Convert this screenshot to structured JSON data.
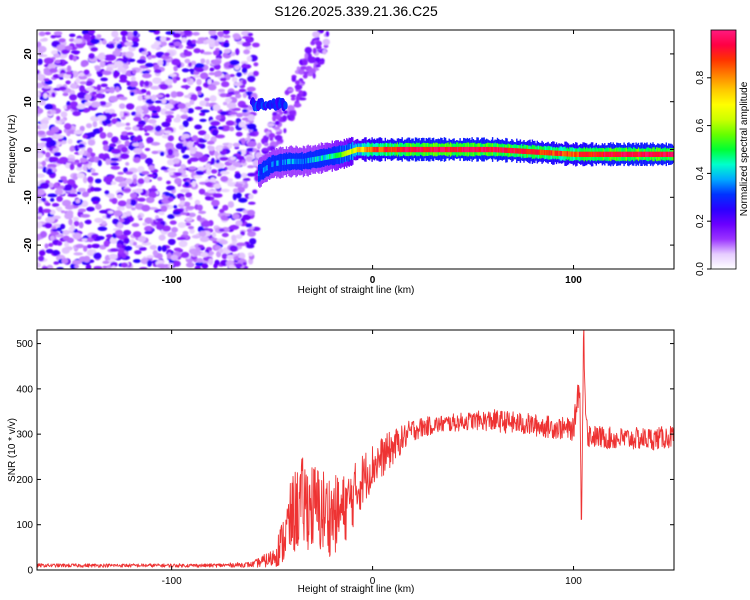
{
  "title": "S126.2025.339.21.36.C25",
  "chart_data": [
    {
      "type": "heatmap",
      "name": "spectrogram",
      "xlabel": "Height of straight line (km)",
      "ylabel": "Frequency (Hz)",
      "xlim": [
        -167,
        150
      ],
      "ylim": [
        -25,
        25
      ],
      "xticks": [
        -100,
        0,
        100
      ],
      "yticks": [
        -20,
        -10,
        0,
        10,
        20
      ],
      "colorbar": {
        "label": "Normalized spectral amplitude",
        "range": [
          0,
          1
        ],
        "ticks": [
          0.0,
          0.2,
          0.4,
          0.6,
          0.8
        ],
        "colors": [
          "#ffffff",
          "#e6ccff",
          "#9a33ff",
          "#6a00ff",
          "#2a00ff",
          "#0033ff",
          "#00aaff",
          "#00ffcc",
          "#00ff33",
          "#66ff00",
          "#ccff00",
          "#ffff00",
          "#ffc800",
          "#ff8000",
          "#ff3300",
          "#ff0044",
          "#ff1a80"
        ]
      },
      "features": [
        {
          "label": "noise",
          "x_range": [
            -167,
            -58
          ],
          "y_range": [
            -25,
            25
          ],
          "amplitude": 0.1
        },
        {
          "label": "tone_10Hz",
          "x_range": [
            -60,
            -43
          ],
          "y_center": 9.5,
          "amplitude": 0.3
        },
        {
          "label": "ridge",
          "x": [
            -57,
            -50,
            -42,
            -35,
            -28,
            -22,
            -15,
            -8,
            0,
            20,
            40,
            60,
            80,
            100,
            120,
            150
          ],
          "y": [
            -5,
            -3,
            -2.5,
            -2.5,
            -2,
            -1.5,
            -1,
            0,
            0,
            0,
            0,
            0,
            -0.5,
            -1,
            -1,
            -1
          ],
          "amplitude": [
            0.3,
            0.35,
            0.35,
            0.35,
            0.4,
            0.45,
            0.55,
            0.7,
            0.85,
            0.95,
            0.95,
            0.95,
            0.9,
            0.85,
            0.95,
            0.95
          ]
        }
      ]
    },
    {
      "type": "line",
      "name": "snr",
      "color": "#ee3333",
      "xlabel": "Height of straight line (km)",
      "ylabel": "SNR (10 * v/v)",
      "xlim": [
        -167,
        150
      ],
      "ylim": [
        0,
        530
      ],
      "xticks": [
        -100,
        0,
        100
      ],
      "yticks": [
        0,
        100,
        200,
        300,
        400,
        500
      ],
      "series": [
        {
          "name": "SNR",
          "x": [
            -167,
            -140,
            -110,
            -80,
            -60,
            -50,
            -45,
            -40,
            -35,
            -30,
            -25,
            -20,
            -15,
            -10,
            -5,
            0,
            5,
            10,
            15,
            20,
            30,
            40,
            50,
            60,
            70,
            80,
            90,
            100,
            103,
            104,
            105,
            106,
            107,
            110,
            120,
            130,
            140,
            150
          ],
          "y": [
            10,
            10,
            10,
            10,
            12,
            25,
            60,
            120,
            150,
            140,
            130,
            120,
            130,
            160,
            200,
            230,
            250,
            270,
            290,
            310,
            320,
            325,
            330,
            330,
            325,
            320,
            315,
            310,
            420,
            90,
            525,
            380,
            300,
            295,
            290,
            290,
            290,
            295
          ],
          "spread": [
            4,
            4,
            4,
            4,
            6,
            20,
            50,
            90,
            100,
            100,
            100,
            90,
            80,
            70,
            60,
            50,
            45,
            40,
            30,
            25,
            20,
            20,
            20,
            25,
            25,
            25,
            25,
            25,
            40,
            40,
            40,
            40,
            30,
            25,
            25,
            25,
            25,
            25
          ]
        }
      ]
    }
  ]
}
